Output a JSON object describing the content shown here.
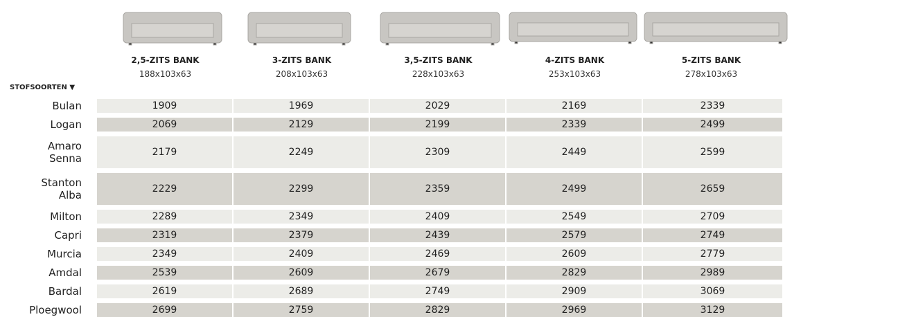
{
  "table": {
    "columns": [
      {
        "name": "2,5-ZITS BANK",
        "size": "188x103x63"
      },
      {
        "name": "3-ZITS BANK",
        "size": "208x103x63"
      },
      {
        "name": "3,5-ZITS BANK",
        "size": "228x103x63"
      },
      {
        "name": "4-ZITS BANK",
        "size": "253x103x63"
      },
      {
        "name": "5-ZITS BANK",
        "size": "278x103x63"
      }
    ],
    "row_header": "STOFSOORTEN ▼",
    "rows": [
      {
        "label": [
          "Bulan"
        ],
        "prices": [
          1909,
          1969,
          2029,
          2169,
          2339
        ]
      },
      {
        "label": [
          "Logan"
        ],
        "prices": [
          2069,
          2129,
          2199,
          2339,
          2499
        ]
      },
      {
        "label": [
          "Amaro",
          "Senna"
        ],
        "prices": [
          2179,
          2249,
          2309,
          2449,
          2599
        ]
      },
      {
        "label": [
          "Stanton",
          "Alba"
        ],
        "prices": [
          2229,
          2299,
          2359,
          2499,
          2659
        ]
      },
      {
        "label": [
          "Milton"
        ],
        "prices": [
          2289,
          2349,
          2409,
          2549,
          2709
        ]
      },
      {
        "label": [
          "Capri"
        ],
        "prices": [
          2319,
          2379,
          2439,
          2579,
          2749
        ]
      },
      {
        "label": [
          "Murcia"
        ],
        "prices": [
          2349,
          2409,
          2469,
          2609,
          2779
        ]
      },
      {
        "label": [
          "Amdal"
        ],
        "prices": [
          2539,
          2609,
          2679,
          2829,
          2989
        ]
      },
      {
        "label": [
          "Bardal"
        ],
        "prices": [
          2619,
          2689,
          2749,
          2909,
          3069
        ]
      },
      {
        "label": [
          "Ploegwool"
        ],
        "prices": [
          2699,
          2759,
          2829,
          2969,
          3129
        ]
      }
    ]
  }
}
